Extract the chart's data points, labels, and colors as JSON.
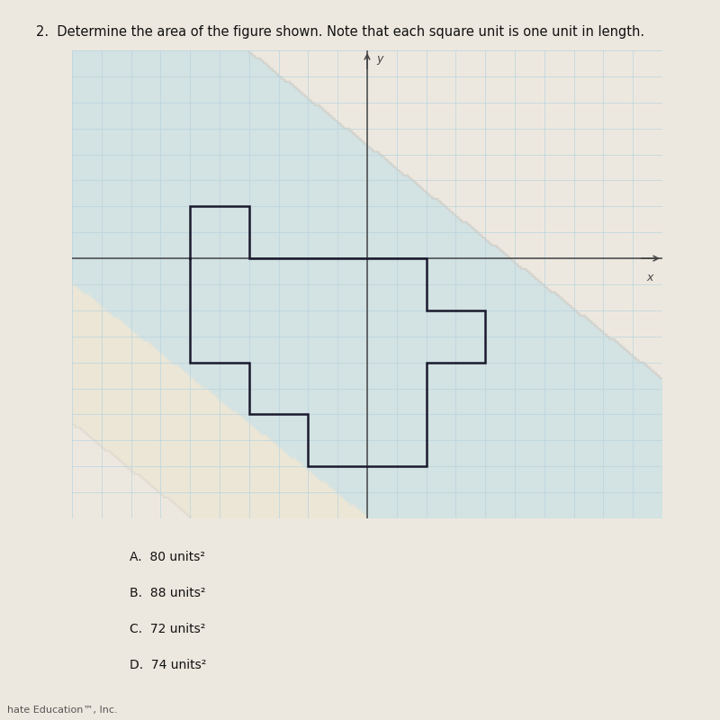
{
  "title": "2.  Determine the area of the figure shown. Note that each square unit is one unit in length.",
  "title_fontsize": 10.5,
  "bg_color": "#ede8df",
  "grid_color": "#b8d4e0",
  "axis_color": "#444444",
  "shape_color": "#1a1a2e",
  "shape_linewidth": 1.8,
  "shape_vertices": [
    [
      -6,
      0
    ],
    [
      -6,
      2
    ],
    [
      -4,
      2
    ],
    [
      -4,
      0
    ],
    [
      2,
      0
    ],
    [
      2,
      -2
    ],
    [
      4,
      -2
    ],
    [
      4,
      -4
    ],
    [
      2,
      -4
    ],
    [
      2,
      -8
    ],
    [
      -2,
      -8
    ],
    [
      -2,
      -6
    ],
    [
      -4,
      -6
    ],
    [
      -4,
      -4
    ],
    [
      -6,
      -4
    ],
    [
      -6,
      0
    ]
  ],
  "xlim": [
    -10,
    10
  ],
  "ylim": [
    -10,
    8
  ],
  "answers": [
    "A.  80 units²",
    "B.  88 units²",
    "C.  72 units²",
    "D.  74 units²"
  ],
  "answer_fontsize": 10,
  "footer": "hate Education™, Inc.",
  "footer_fontsize": 8
}
